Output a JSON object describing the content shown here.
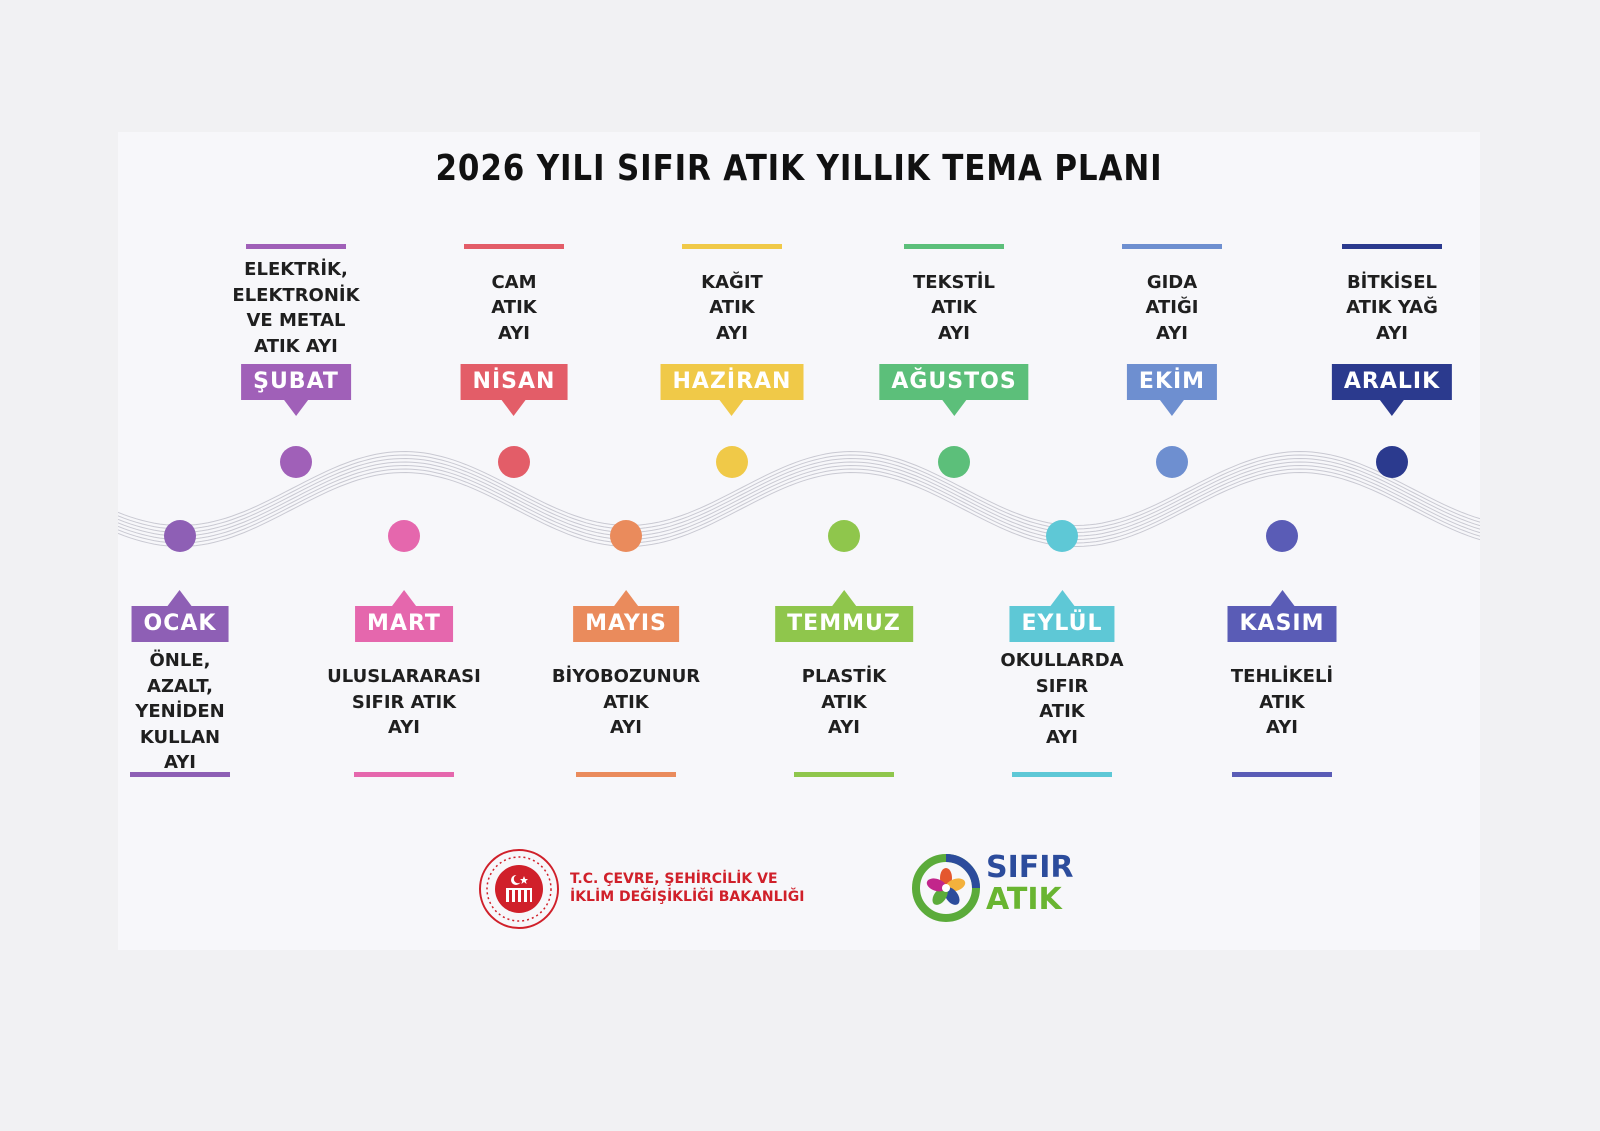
{
  "title": "2026 YILI SIFIR ATIK YILLIK TEMA PLANI",
  "months": [
    {
      "name": "OCAK",
      "theme": "ÖNLE,\nAZALT,\nYENİDEN\nKULLAN\nAYI",
      "color": "#8e5fb5",
      "position": "bottom"
    },
    {
      "name": "ŞUBAT",
      "theme": "ELEKTRİK,\nELEKTRONİK\nVE METAL\nATIK AYI",
      "color": "#a060b8",
      "position": "top"
    },
    {
      "name": "MART",
      "theme": "ULUSLARARASI\nSIFIR ATIK\nAYI",
      "color": "#e567ad",
      "position": "bottom"
    },
    {
      "name": "NİSAN",
      "theme": "CAM\nATIK\nAYI",
      "color": "#e35d68",
      "position": "top"
    },
    {
      "name": "MAYIS",
      "theme": "BİYOBOZUNUR\nATIK\nAYI",
      "color": "#ea8b5c",
      "position": "bottom"
    },
    {
      "name": "HAZİRAN",
      "theme": "KAĞIT\nATIK\nAYI",
      "color": "#f0c948",
      "position": "top"
    },
    {
      "name": "TEMMUZ",
      "theme": "PLASTİK\nATIK\nAYI",
      "color": "#8fc64c",
      "position": "bottom"
    },
    {
      "name": "AĞUSTOS",
      "theme": "TEKSTİL\nATIK\nAYI",
      "color": "#5cbf7a",
      "position": "top"
    },
    {
      "name": "EYLÜL",
      "theme": "OKULLARDA\nSIFIR\nATIK\nAYI",
      "color": "#5ec8d6",
      "position": "bottom"
    },
    {
      "name": "EKİM",
      "theme": "GIDA\nATIĞI\nAYI",
      "color": "#6e8fd0",
      "position": "top"
    },
    {
      "name": "KASIM",
      "theme": "TEHLİKELİ\nATIK\nAYI",
      "color": "#5a5cb6",
      "position": "bottom"
    },
    {
      "name": "ARALIK",
      "theme": "BİTKİSEL\nATIK YAĞ\nAYI",
      "color": "#2b3a8e",
      "position": "top"
    }
  ],
  "footer": {
    "ministry_name": "T.C. ÇEVRE, ŞEHİRCİLİK VE\nİKLİM DEĞİŞİKLİĞİ BAKANLIĞI",
    "sifir_line1": "SIFIR",
    "sifir_line2": "ATIK"
  }
}
